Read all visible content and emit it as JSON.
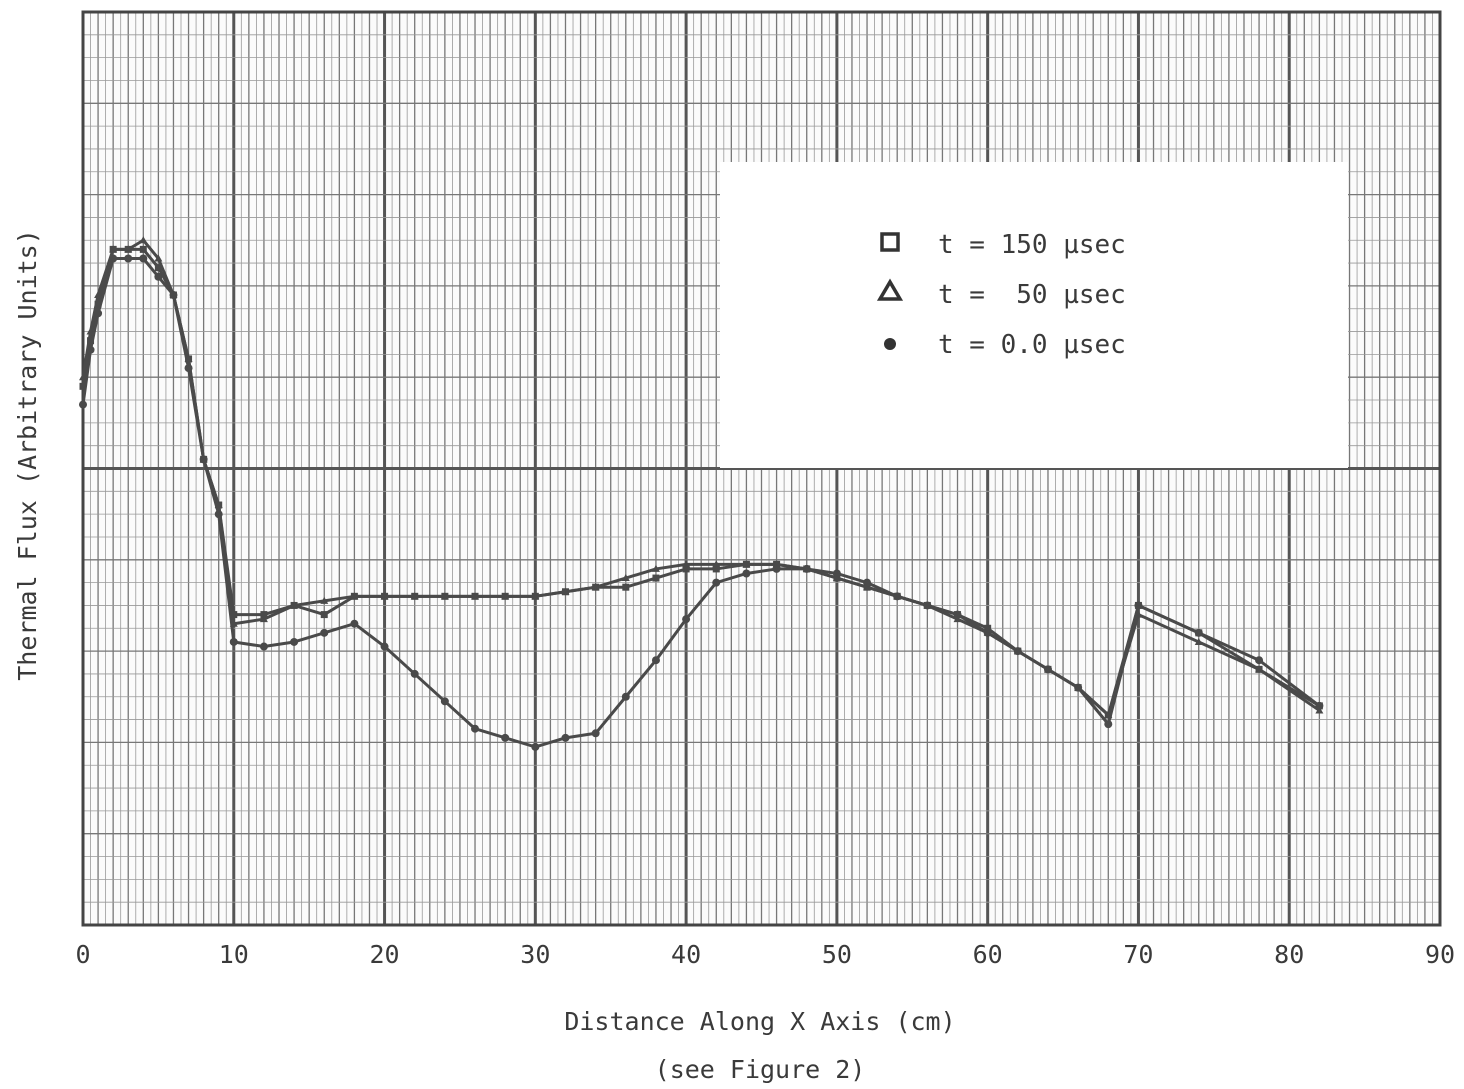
{
  "chart_data": {
    "type": "line",
    "title": "",
    "xlabel": "Distance Along X Axis (cm)",
    "xlabel_note": "(see Figure 2)",
    "ylabel": "Thermal Flux (Arbitrary Units)",
    "xlim": [
      0,
      90
    ],
    "ylim": [
      0,
      10
    ],
    "x_ticks": [
      0,
      10,
      20,
      30,
      40,
      50,
      60,
      70,
      80,
      90
    ],
    "x_tick_labels": [
      "0",
      "10",
      "20",
      "30",
      "40",
      "50",
      "60",
      "70",
      "80",
      "90"
    ],
    "grid": true,
    "legend_position": "top-right",
    "series": [
      {
        "name": "t = 150 µsec",
        "marker": "square",
        "x": [
          0,
          0.5,
          1,
          2,
          3,
          4,
          5,
          6,
          7,
          8,
          9,
          10,
          12,
          14,
          16,
          18,
          20,
          22,
          24,
          26,
          28,
          30,
          32,
          34,
          36,
          38,
          40,
          42,
          44,
          46,
          48,
          50,
          52,
          54,
          56,
          58,
          60,
          62,
          64,
          66,
          68,
          70,
          74,
          78,
          82
        ],
        "y": [
          5.9,
          6.4,
          6.8,
          7.4,
          7.4,
          7.4,
          7.2,
          6.9,
          6.2,
          5.1,
          4.6,
          3.4,
          3.4,
          3.5,
          3.4,
          3.6,
          3.6,
          3.6,
          3.6,
          3.6,
          3.6,
          3.6,
          3.65,
          3.7,
          3.7,
          3.8,
          3.9,
          3.9,
          3.95,
          3.95,
          3.9,
          3.8,
          3.7,
          3.6,
          3.5,
          3.4,
          3.25,
          3.0,
          2.8,
          2.6,
          2.3,
          3.5,
          3.2,
          2.8,
          2.4
        ]
      },
      {
        "name": "t =  50 µsec",
        "marker": "triangle",
        "x": [
          0,
          0.5,
          1,
          2,
          3,
          4,
          5,
          6,
          7,
          8,
          9,
          10,
          12,
          14,
          16,
          18,
          20,
          22,
          24,
          26,
          28,
          30,
          32,
          34,
          36,
          38,
          40,
          42,
          44,
          46,
          48,
          50,
          52,
          54,
          56,
          58,
          60,
          62,
          64,
          66,
          68,
          70,
          74,
          78,
          82
        ],
        "y": [
          6.0,
          6.5,
          6.9,
          7.4,
          7.4,
          7.5,
          7.3,
          6.9,
          6.2,
          5.1,
          4.6,
          3.3,
          3.35,
          3.5,
          3.55,
          3.6,
          3.6,
          3.6,
          3.6,
          3.6,
          3.6,
          3.6,
          3.65,
          3.7,
          3.8,
          3.9,
          3.95,
          3.95,
          3.95,
          3.95,
          3.9,
          3.8,
          3.7,
          3.6,
          3.5,
          3.35,
          3.2,
          3.0,
          2.8,
          2.6,
          2.3,
          3.4,
          3.1,
          2.8,
          2.35
        ]
      },
      {
        "name": "t = 0.0 µsec",
        "marker": "dot",
        "x": [
          0,
          0.5,
          1,
          2,
          3,
          4,
          5,
          6,
          7,
          8,
          9,
          10,
          12,
          14,
          16,
          18,
          20,
          22,
          24,
          26,
          28,
          30,
          32,
          34,
          36,
          38,
          40,
          42,
          44,
          46,
          48,
          50,
          52,
          54,
          56,
          58,
          60,
          62,
          64,
          66,
          68,
          70,
          74,
          78,
          82
        ],
        "y": [
          5.7,
          6.3,
          6.7,
          7.3,
          7.3,
          7.3,
          7.1,
          6.9,
          6.1,
          5.1,
          4.5,
          3.1,
          3.05,
          3.1,
          3.2,
          3.3,
          3.05,
          2.75,
          2.45,
          2.15,
          2.05,
          1.95,
          2.05,
          2.1,
          2.5,
          2.9,
          3.35,
          3.75,
          3.85,
          3.9,
          3.9,
          3.85,
          3.75,
          3.6,
          3.5,
          3.4,
          3.2,
          3.0,
          2.8,
          2.6,
          2.2,
          3.5,
          3.2,
          2.9,
          2.4
        ]
      }
    ]
  }
}
